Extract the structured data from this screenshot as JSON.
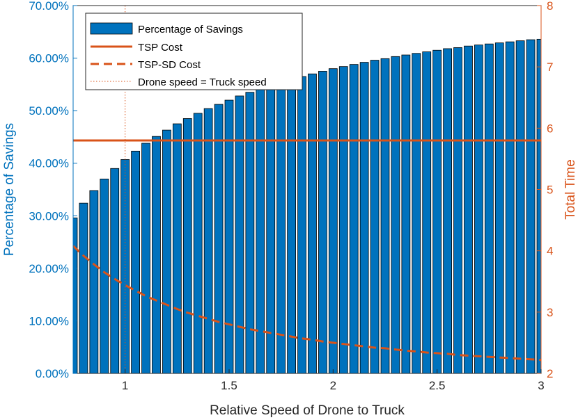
{
  "chart_data": {
    "type": "bar",
    "xlabel": "Relative Speed of Drone to Truck",
    "ylabel_left": "Percentage of Savings",
    "ylabel_right": "Total Time",
    "xlim": [
      0.75,
      3.0
    ],
    "ylim_left": [
      0,
      70
    ],
    "ylim_right": [
      2,
      8
    ],
    "x_ticks": [
      "1",
      "1.5",
      "2",
      "2.5",
      "3"
    ],
    "x_tick_values": [
      1,
      1.5,
      2,
      2.5,
      3
    ],
    "y_left_ticks": [
      "0.00%",
      "10.00%",
      "20.00%",
      "30.00%",
      "40.00%",
      "50.00%",
      "60.00%",
      "70.00%"
    ],
    "y_left_tick_values": [
      0,
      10,
      20,
      30,
      40,
      50,
      60,
      70
    ],
    "y_right_ticks": [
      "2",
      "3",
      "4",
      "5",
      "6",
      "7",
      "8"
    ],
    "y_right_tick_values": [
      2,
      3,
      4,
      5,
      6,
      7,
      8
    ],
    "legend_position": "top-left",
    "grid": false,
    "colors": {
      "bar_fill": "#0072BD",
      "bar_edge": "#000000",
      "tsp_line": "#D95319",
      "tspsd_line": "#D95319",
      "drone_line": "#D95319",
      "left_axis": "#0072BD",
      "right_axis": "#D95319"
    },
    "x": [
      0.75,
      0.8,
      0.85,
      0.9,
      0.95,
      1.0,
      1.05,
      1.1,
      1.15,
      1.2,
      1.25,
      1.3,
      1.35,
      1.4,
      1.45,
      1.5,
      1.55,
      1.6,
      1.65,
      1.7,
      1.75,
      1.8,
      1.85,
      1.9,
      1.95,
      2.0,
      2.05,
      2.1,
      2.15,
      2.2,
      2.25,
      2.3,
      2.35,
      2.4,
      2.45,
      2.5,
      2.55,
      2.6,
      2.65,
      2.7,
      2.75,
      2.8,
      2.85,
      2.9,
      2.95,
      3.0
    ],
    "series": [
      {
        "name": "Percentage of Savings",
        "type": "bar",
        "axis": "left",
        "values": [
          29.6,
          32.4,
          34.8,
          37.0,
          39.0,
          40.7,
          42.3,
          43.8,
          45.1,
          46.3,
          47.5,
          48.5,
          49.5,
          50.4,
          51.2,
          52.0,
          52.8,
          53.5,
          54.2,
          54.8,
          55.4,
          56.0,
          56.5,
          57.0,
          57.5,
          58.0,
          58.4,
          58.8,
          59.2,
          59.6,
          59.9,
          60.3,
          60.6,
          60.9,
          61.2,
          61.5,
          61.8,
          62.0,
          62.3,
          62.5,
          62.7,
          62.9,
          63.1,
          63.3,
          63.5,
          63.6
        ]
      },
      {
        "name": "TSP Cost",
        "type": "line",
        "axis": "right",
        "style": "solid",
        "values": [
          5.8,
          5.8,
          5.8,
          5.8,
          5.8,
          5.8,
          5.8,
          5.8,
          5.8,
          5.8,
          5.8,
          5.8,
          5.8,
          5.8,
          5.8,
          5.8,
          5.8,
          5.8,
          5.8,
          5.8,
          5.8,
          5.8,
          5.8,
          5.8,
          5.8,
          5.8,
          5.8,
          5.8,
          5.8,
          5.8,
          5.8,
          5.8,
          5.8,
          5.8,
          5.8,
          5.8,
          5.8,
          5.8,
          5.8,
          5.8,
          5.8,
          5.8,
          5.8,
          5.8,
          5.8,
          5.8
        ]
      },
      {
        "name": "TSP-SD Cost",
        "type": "line",
        "axis": "right",
        "style": "dashed",
        "values": [
          4.08,
          3.92,
          3.78,
          3.65,
          3.54,
          3.44,
          3.35,
          3.26,
          3.19,
          3.12,
          3.05,
          2.99,
          2.94,
          2.89,
          2.84,
          2.8,
          2.76,
          2.72,
          2.69,
          2.66,
          2.63,
          2.6,
          2.57,
          2.55,
          2.52,
          2.5,
          2.48,
          2.46,
          2.44,
          2.42,
          2.41,
          2.39,
          2.37,
          2.36,
          2.34,
          2.33,
          2.32,
          2.3,
          2.29,
          2.28,
          2.27,
          2.26,
          2.25,
          2.24,
          2.23,
          2.22
        ]
      },
      {
        "name": "Drone speed = Truck speed",
        "type": "vline",
        "style": "dotted",
        "x_value": 1
      }
    ]
  }
}
